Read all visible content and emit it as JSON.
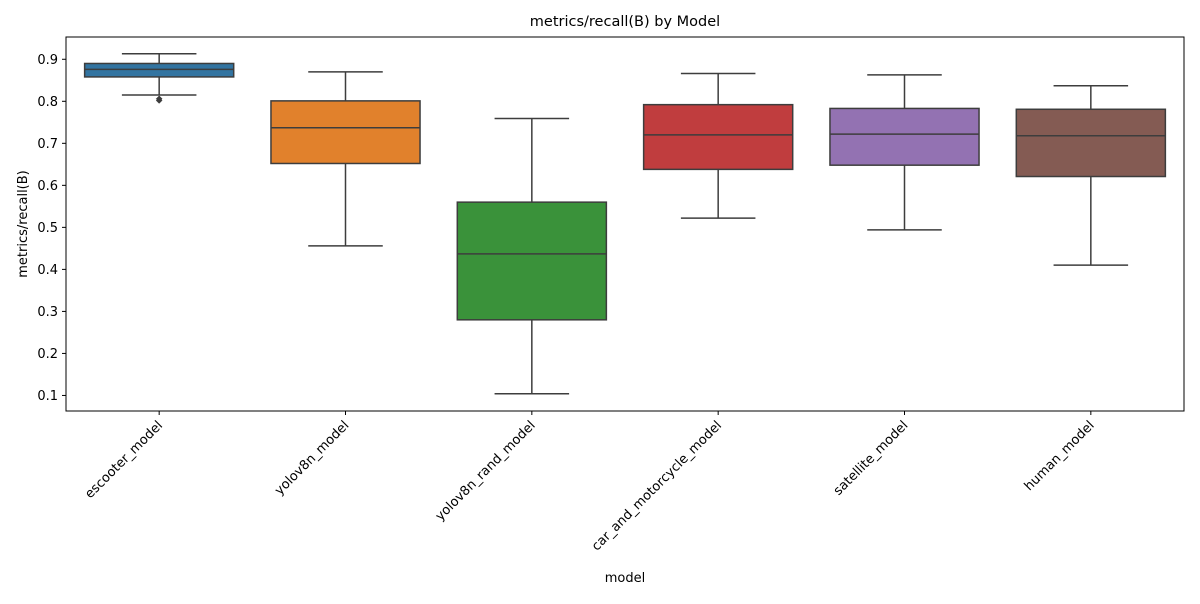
{
  "chart_data": {
    "type": "box",
    "title": "metrics/recall(B) by Model",
    "xlabel": "model",
    "ylabel": "metrics/recall(B)",
    "ylim": [
      0.063,
      0.953
    ],
    "yticks": [
      0.1,
      0.2,
      0.3,
      0.4,
      0.5,
      0.6,
      0.7,
      0.8,
      0.9
    ],
    "grid": false,
    "legend": "none",
    "categories": [
      "escooter_model",
      "yolov8n_model",
      "yolov8n_rand_model",
      "car_and_motorcycle_model",
      "satellite_model",
      "human_model"
    ],
    "boxes": [
      {
        "category": "escooter_model",
        "whisker_low": 0.815,
        "q1": 0.858,
        "median": 0.876,
        "q3": 0.89,
        "whisker_high": 0.913,
        "outliers": [
          0.802,
          0.806
        ],
        "color": "#3274a1"
      },
      {
        "category": "yolov8n_model",
        "whisker_low": 0.456,
        "q1": 0.652,
        "median": 0.737,
        "q3": 0.801,
        "whisker_high": 0.87,
        "outliers": [],
        "color": "#e1812c"
      },
      {
        "category": "yolov8n_rand_model",
        "whisker_low": 0.104,
        "q1": 0.28,
        "median": 0.437,
        "q3": 0.56,
        "whisker_high": 0.759,
        "outliers": [],
        "color": "#3a923a"
      },
      {
        "category": "car_and_motorcycle_model",
        "whisker_low": 0.522,
        "q1": 0.638,
        "median": 0.72,
        "q3": 0.792,
        "whisker_high": 0.866,
        "outliers": [],
        "color": "#c03d3e"
      },
      {
        "category": "satellite_model",
        "whisker_low": 0.494,
        "q1": 0.648,
        "median": 0.722,
        "q3": 0.783,
        "whisker_high": 0.863,
        "outliers": [],
        "color": "#9372b2"
      },
      {
        "category": "human_model",
        "whisker_low": 0.41,
        "q1": 0.621,
        "median": 0.718,
        "q3": 0.781,
        "whisker_high": 0.837,
        "outliers": [],
        "color": "#845b53"
      }
    ],
    "colors": {
      "line": "#3d3d3d",
      "axis": "#000000"
    }
  }
}
